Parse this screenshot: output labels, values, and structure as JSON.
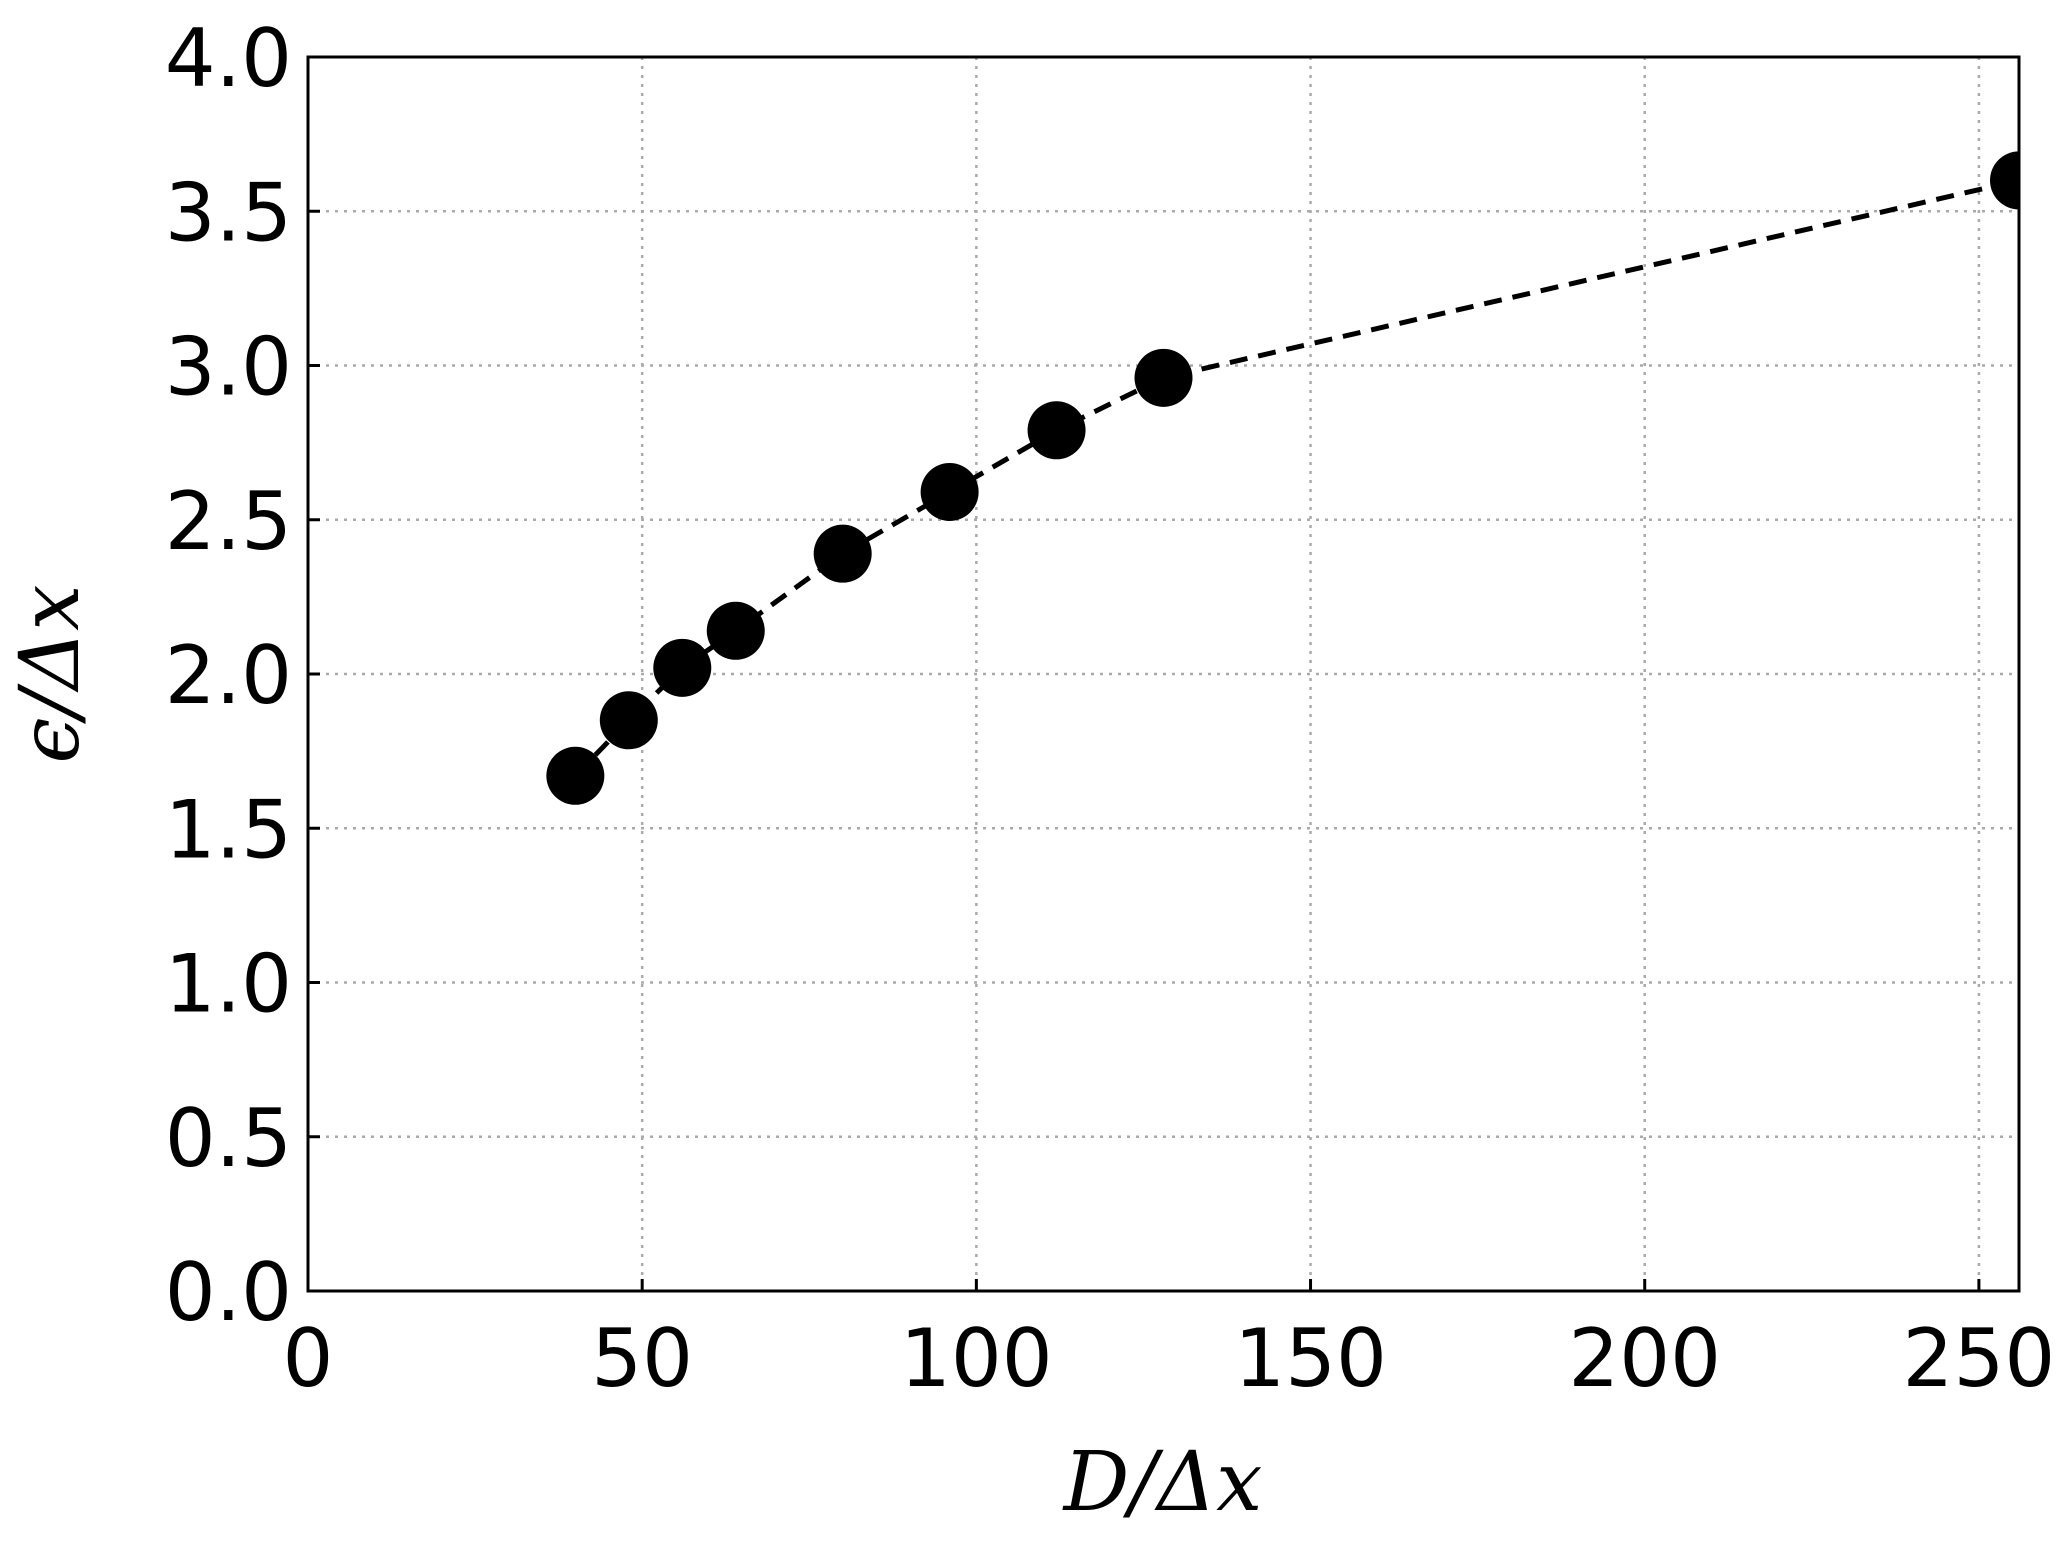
{
  "chart_data": {
    "type": "line",
    "x_label": "D/Δx",
    "y_label": "ϵ/Δx",
    "x": [
      40,
      48,
      56,
      64,
      80,
      96,
      112,
      128,
      256
    ],
    "series": [
      {
        "color": "#000000",
        "values": [
          1.67,
          1.85,
          2.02,
          2.14,
          2.39,
          2.59,
          2.79,
          2.96,
          3.6
        ]
      }
    ],
    "xlim": [
      0,
      256
    ],
    "ylim": [
      0.0,
      4.0
    ],
    "xticks": [
      0,
      50,
      100,
      150,
      200,
      250
    ],
    "yticks": [
      {
        "value": 0,
        "label": "0.0"
      },
      {
        "value": 0.5,
        "label": "0.5"
      },
      {
        "value": 1,
        "label": "1.0"
      },
      {
        "value": 1.5,
        "label": "1.5"
      },
      {
        "value": 2,
        "label": "2.0"
      },
      {
        "value": 2.5,
        "label": "2.5"
      },
      {
        "value": 3,
        "label": "3.0"
      },
      {
        "value": 3.5,
        "label": "3.5"
      },
      {
        "value": 4,
        "label": "4.0"
      }
    ],
    "grid": true,
    "line_style": "dashed"
  }
}
